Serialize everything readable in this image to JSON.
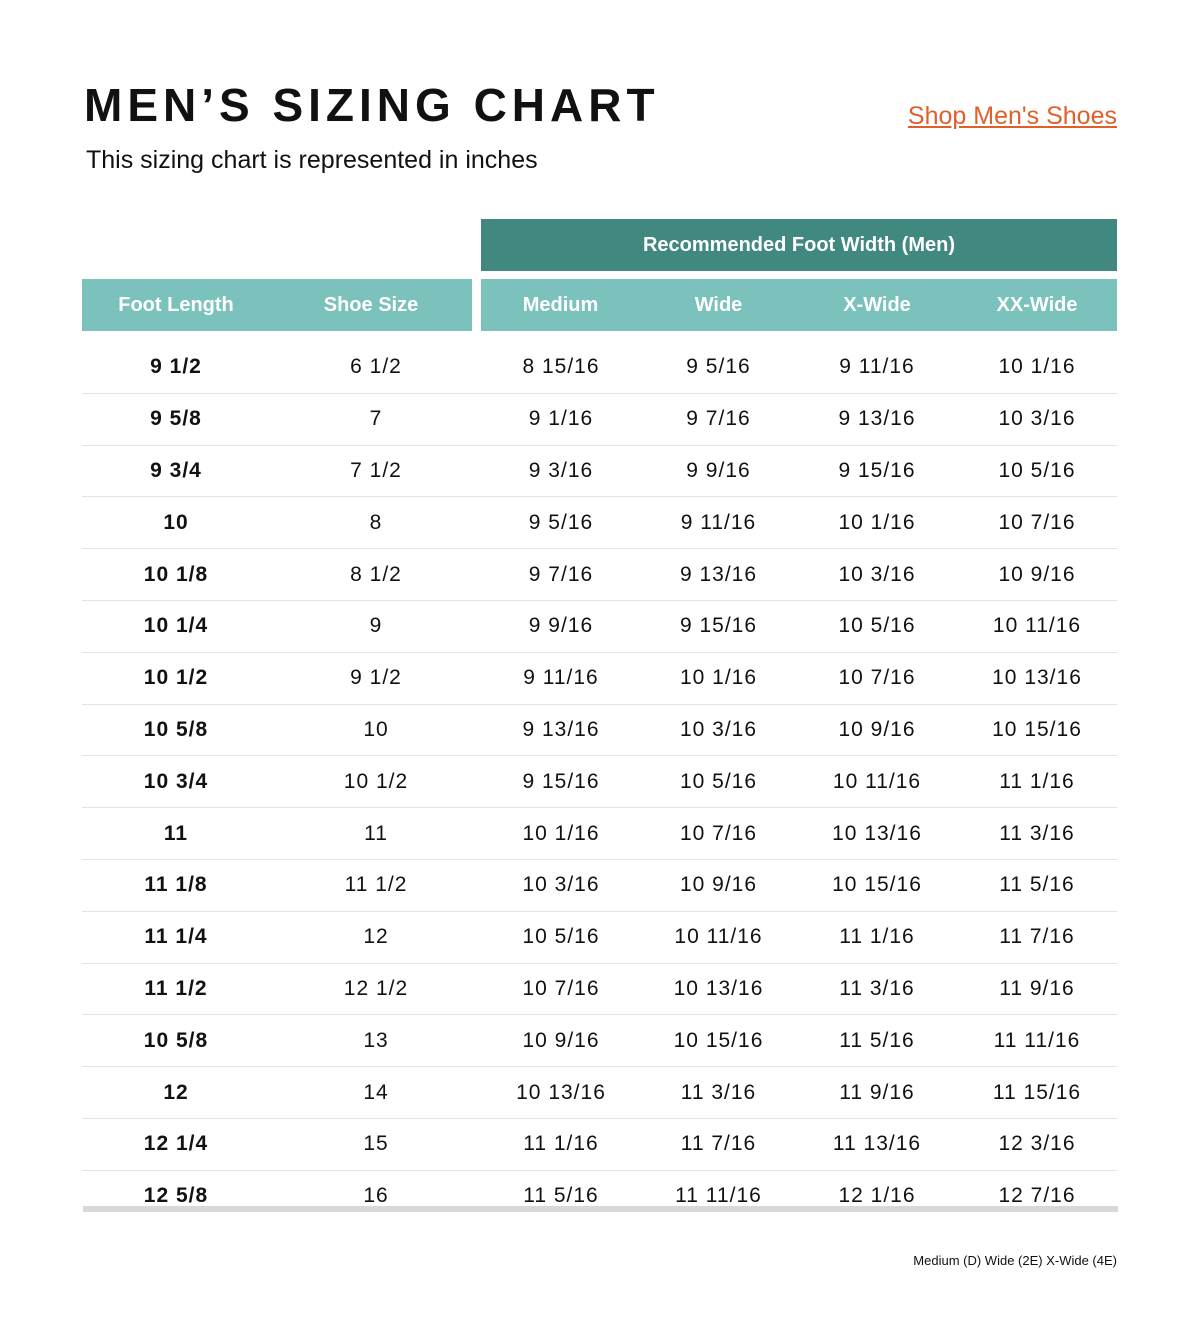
{
  "title": "MEN’S SIZING CHART",
  "subtitle": "This sizing chart is represented in inches",
  "shop_link": "Shop Men's Shoes",
  "group_header": "Recommended Foot Width (Men)",
  "columns": [
    "Foot Length",
    "Shoe Size",
    "Medium",
    "Wide",
    "X-Wide",
    "XX-Wide"
  ],
  "rows": [
    [
      "9 1/2",
      "6 1/2",
      "8 15/16",
      "9 5/16",
      "9 11/16",
      "10 1/16"
    ],
    [
      "9 5/8",
      "7",
      "9 1/16",
      "9 7/16",
      "9 13/16",
      "10 3/16"
    ],
    [
      "9 3/4",
      "7 1/2",
      "9 3/16",
      "9 9/16",
      "9 15/16",
      "10 5/16"
    ],
    [
      "10",
      "8",
      "9 5/16",
      "9 11/16",
      "10 1/16",
      "10 7/16"
    ],
    [
      "10 1/8",
      "8 1/2",
      "9 7/16",
      "9 13/16",
      "10 3/16",
      "10 9/16"
    ],
    [
      "10 1/4",
      "9",
      "9 9/16",
      "9 15/16",
      "10 5/16",
      "10 11/16"
    ],
    [
      "10 1/2",
      "9 1/2",
      "9 11/16",
      "10 1/16",
      "10 7/16",
      "10 13/16"
    ],
    [
      "10 5/8",
      "10",
      "9 13/16",
      "10 3/16",
      "10 9/16",
      "10 15/16"
    ],
    [
      "10 3/4",
      "10 1/2",
      "9 15/16",
      "10 5/16",
      "10 11/16",
      "11 1/16"
    ],
    [
      "11",
      "11",
      "10 1/16",
      "10 7/16",
      "10 13/16",
      "11 3/16"
    ],
    [
      "11 1/8",
      "11 1/2",
      "10 3/16",
      "10 9/16",
      "10 15/16",
      "11 5/16"
    ],
    [
      "11 1/4",
      "12",
      "10 5/16",
      "10 11/16",
      "11 1/16",
      "11 7/16"
    ],
    [
      "11 1/2",
      "12 1/2",
      "10 7/16",
      "10 13/16",
      "11 3/16",
      "11 9/16"
    ],
    [
      "10 5/8",
      "13",
      "10 9/16",
      "10 15/16",
      "11 5/16",
      "11 11/16"
    ],
    [
      "12",
      "14",
      "10 13/16",
      "11 3/16",
      "11 9/16",
      "11 15/16"
    ],
    [
      "12 1/4",
      "15",
      "11 1/16",
      "11 7/16",
      "11 13/16",
      "12 3/16"
    ],
    [
      "12 5/8",
      "16",
      "11 5/16",
      "11 11/16",
      "12 1/16",
      "12 7/16"
    ]
  ],
  "footnote": "Medium (D) Wide (2E) X-Wide (4E)",
  "colors": {
    "group_header": "#418880",
    "column_header": "#7bc2bc",
    "link": "#e0602b"
  }
}
